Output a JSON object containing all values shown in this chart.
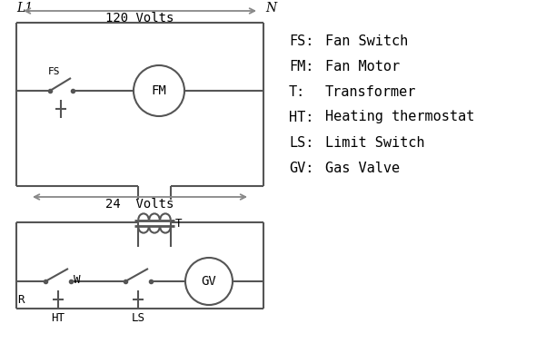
{
  "bg_color": "#ffffff",
  "line_color": "#555555",
  "arrow_color": "#888888",
  "text_color": "#000000",
  "lw": 1.5,
  "legend_items": [
    [
      "FS:",
      "Fan Switch"
    ],
    [
      "FM:",
      "Fan Motor"
    ],
    [
      "T:",
      "Transformer"
    ],
    [
      "HT:",
      "Heating thermostat"
    ],
    [
      "LS:",
      "Limit Switch"
    ],
    [
      "GV:",
      "Gas Valve"
    ]
  ],
  "L1_label": "L1",
  "N_label": "N",
  "volts120_label": "120 Volts",
  "volts24_label": "24  Volts",
  "T_label": "T",
  "FS_label": "FS",
  "FM_label": "FM",
  "R_label": "R",
  "W_label": "W",
  "HT_label": "HT",
  "LS_label": "LS",
  "GV_label": "GV"
}
